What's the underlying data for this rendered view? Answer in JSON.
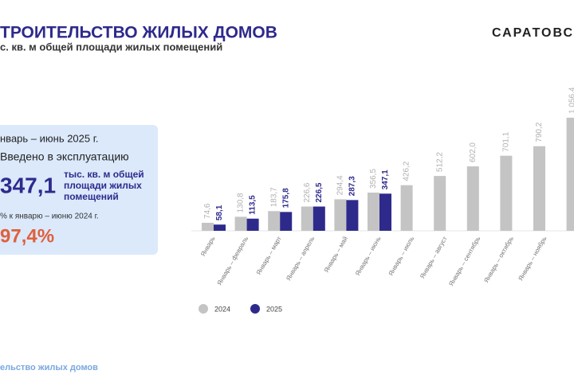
{
  "header": {
    "title": "ТРОИТЕЛЬСТВО ЖИЛЫХ ДОМОВ",
    "subtitle": "с. кв. м общей площади жилых помещений",
    "logo": "САРАТОВС"
  },
  "card": {
    "period": "нварь – июнь 2025 г.",
    "caption": "Введено в эксплуатацию",
    "value": "347,1",
    "unit": "тыс. кв. м общей площади жилых помещений",
    "compare_label": "% к январю – июню 2024 г.",
    "compare_value": "97,4%"
  },
  "footer": "ельство жилых домов",
  "chart_data": {
    "type": "bar",
    "categories": [
      "Январь",
      "Январь – февраль",
      "Январь – март",
      "Январь – апрель",
      "Январь – май",
      "Январь – июнь",
      "Январь – июль",
      "Январь – август",
      "Январь – сентябрь",
      "Январь – октябрь",
      "Январь – ноябрь",
      null
    ],
    "series": [
      {
        "name": "2024",
        "color": "#c4c4c4",
        "values": [
          74.6,
          130.8,
          183.7,
          226.6,
          294.4,
          356.5,
          426.2,
          512.2,
          602.0,
          701.1,
          790.2,
          1056.4
        ],
        "value_labels": [
          "74,6",
          "130,8",
          "183,7",
          "226,6",
          "294,4",
          "356,5",
          "426,2",
          "512,2",
          "602,0",
          "701,1",
          "790,2",
          "1 056,4"
        ]
      },
      {
        "name": "2025",
        "color": "#2e2a8c",
        "values": [
          58.1,
          113.5,
          175.8,
          226.5,
          287.3,
          347.1,
          null,
          null,
          null,
          null,
          null,
          null
        ],
        "value_labels": [
          "58,1",
          "113,5",
          "175,8",
          "226,5",
          "287,3",
          "347,1",
          null,
          null,
          null,
          null,
          null,
          null
        ]
      }
    ]
  }
}
